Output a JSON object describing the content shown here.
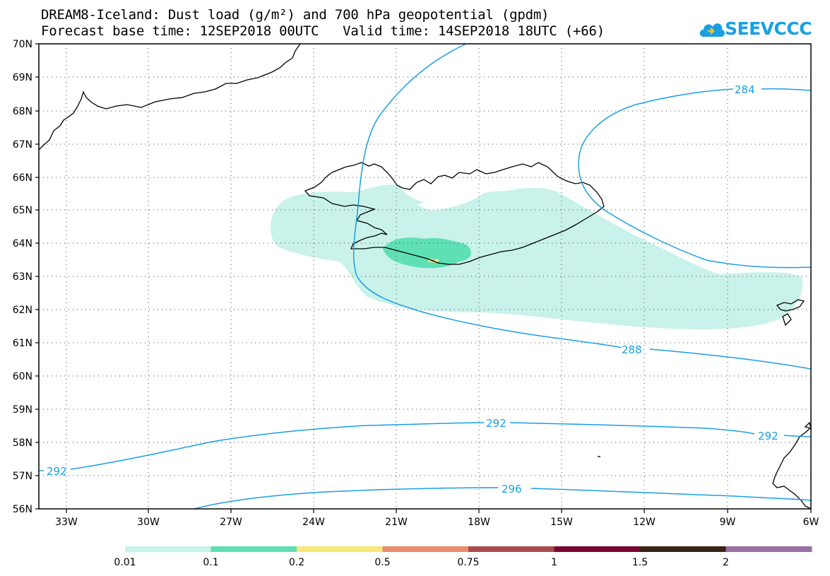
{
  "title": {
    "line1": "DREAM8-Iceland: Dust load (g/m²) and 700 hPa geopotential (gpdm)",
    "line2": "Forecast base time: 12SEP2018 00UTC   Valid time: 14SEP2018 18UTC (+66)"
  },
  "logo": {
    "text": "SEEVCCC",
    "icon": "cloud-icon"
  },
  "axes": {
    "lat_labels": [
      "70N",
      "69N",
      "68N",
      "67N",
      "66N",
      "65N",
      "64N",
      "63N",
      "62N",
      "61N",
      "60N",
      "59N",
      "58N",
      "57N",
      "56N"
    ],
    "lon_labels": [
      "33W",
      "30W",
      "27W",
      "24W",
      "21W",
      "18W",
      "15W",
      "12W",
      "9W",
      "6W"
    ]
  },
  "contour_labels": [
    "284",
    "288",
    "292",
    "292",
    "292",
    "296"
  ],
  "colorbar": {
    "colors": [
      "#c8f2ea",
      "#5ee0b4",
      "#f7e87a",
      "#e98d6a",
      "#a84c4c",
      "#7a0530",
      "#3a2414",
      "#9a6fa3"
    ],
    "labels": [
      "0.01",
      "0.1",
      "0.2",
      "0.5",
      "0.75",
      "1",
      "1.5",
      "2"
    ]
  },
  "colors": {
    "contour": "#1a9fe3",
    "dust_low": "#c8f2ea",
    "dust_mid": "#5ee0b4",
    "dust_high": "#f7e87a",
    "coast": "#000000"
  }
}
